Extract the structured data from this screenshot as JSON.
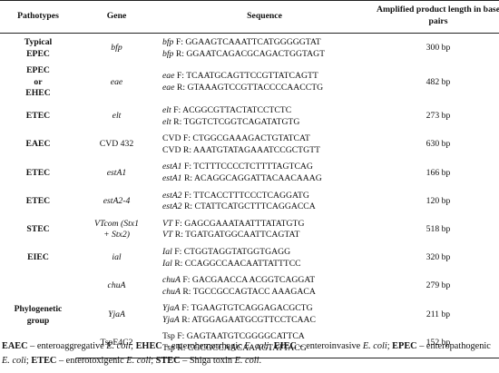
{
  "headers": {
    "pathotypes": "Pathotypes",
    "gene": "Gene",
    "sequence": "Sequence",
    "length": "Amplified product length in base pairs"
  },
  "rows": [
    {
      "pathotype": [
        "Typical",
        "EPEC"
      ],
      "gene": [
        "bfp"
      ],
      "gene_italic": true,
      "seq": [
        {
          "tag": "bfp",
          "text": " F: GGAAGTCAAATTCATGGGGGTAT"
        },
        {
          "tag": "bfp",
          "text": " R: GGAATCAGACGCAGACTGGTAGT"
        }
      ],
      "length": "300 bp"
    },
    {
      "pathotype": [
        "EPEC",
        "or",
        "EHEC"
      ],
      "gene": [
        "eae"
      ],
      "gene_italic": true,
      "seq": [
        {
          "tag": "eae",
          "text": " F: TCAATGCAGTTCCGTTATCAGTT"
        },
        {
          "tag": "eae",
          "text": " R: GTAAAGTCCGTTACCCCAACCTG"
        }
      ],
      "length": "482 bp"
    },
    {
      "pathotype": [
        "ETEC"
      ],
      "gene": [
        "elt"
      ],
      "gene_italic": true,
      "seq": [
        {
          "tag": "elt",
          "text": " F: ACGGCGTTACTATCCTCTC"
        },
        {
          "tag": "elt",
          "text": " R: TGGTCTCGGTCAGATATGTG"
        }
      ],
      "length": "273 bp"
    },
    {
      "pathotype": [
        "EAEC"
      ],
      "gene": [
        "CVD 432"
      ],
      "gene_italic": false,
      "seq": [
        {
          "tag": "CVD",
          "text": " F: CTGGCGAAAGACTGTATCAT",
          "plain": true
        },
        {
          "tag": "CVD",
          "text": " R: AAATGTATAGAAATCCGCTGTT",
          "plain": true
        }
      ],
      "length": "630 bp"
    },
    {
      "pathotype": [
        "ETEC"
      ],
      "gene": [
        "estA1"
      ],
      "gene_italic": true,
      "seq": [
        {
          "tag": "estA1",
          "text": " F: TCTTTCCCCTCTTTTAGTCAG"
        },
        {
          "tag": "estA1",
          "text": " R: ACAGGCAGGATTACAACAAAG"
        }
      ],
      "length": "166 bp"
    },
    {
      "pathotype": [
        "ETEC"
      ],
      "gene": [
        "estA2-4"
      ],
      "gene_italic": true,
      "seq": [
        {
          "tag": "estA2",
          "text": " F: TTCACCTTTCCCTCAGGATG"
        },
        {
          "tag": "estA2",
          "text": " R: CTATTCATGCTTTCAGGACCA"
        }
      ],
      "length": "120 bp"
    },
    {
      "pathotype": [
        "STEC"
      ],
      "gene": [
        "VTcom (Stx1",
        "+ Stx2)"
      ],
      "gene_italic": true,
      "seq": [
        {
          "tag": "VT",
          "text": " F: GAGCGAAATAATTTATATGTG"
        },
        {
          "tag": "VT",
          "text": " R: TGATGATGGCAATTCAGTAT"
        }
      ],
      "length": "518 bp"
    },
    {
      "pathotype": [
        "EIEC"
      ],
      "gene": [
        "ial"
      ],
      "gene_italic": true,
      "seq": [
        {
          "tag": "Ial",
          "text": " F: CTGGTAGGTATGGTGAGG"
        },
        {
          "tag": "Ial",
          "text": " R: CCAGGCCAACAATTATTTCC"
        }
      ],
      "length": "320 bp"
    },
    {
      "pathotype": [],
      "gene": [
        "chuA"
      ],
      "gene_italic": true,
      "seq": [
        {
          "tag": "chuA",
          "text": " F: GACGAACCA ACGGTCAGGAT"
        },
        {
          "tag": "chuA",
          "text": " R: TGCCGCCAGTACC AAAGACA"
        }
      ],
      "length": "279 bp"
    },
    {
      "pathotype": [
        "Phylogenetic",
        "group"
      ],
      "gene": [
        "YjaA"
      ],
      "gene_italic": true,
      "seq": [
        {
          "tag": "YjaA",
          "text": " F: TGAAGTGTCAGGAGACGCTG"
        },
        {
          "tag": "YjaA",
          "text": " R: ATGGAGAATGCGTTCCTCAAC"
        }
      ],
      "length": "211 bp"
    },
    {
      "pathotype": [],
      "gene": [
        "TspE4C2"
      ],
      "gene_italic": false,
      "seq": [
        {
          "tag": "Tsp",
          "text": " F: GAGTAATGTCGGGGCATTCA",
          "plain": true
        },
        {
          "tag": "Tsp",
          "text": " R: CGCGCCAACAAAGTATTACG",
          "plain": true
        }
      ],
      "length": "152 bp"
    }
  ],
  "footnote": [
    {
      "b": "EAEC",
      "t": " – enteroaggregative ",
      "i": "E. coli",
      "s": "; "
    },
    {
      "b": "EHEC",
      "t": " – enterohemorrhagic ",
      "i": "E. coli",
      "s": "; "
    },
    {
      "b": "EIEC",
      "t": " – enteroinvasive ",
      "i": "E. coli",
      "s": "; "
    },
    {
      "b": "EPEC",
      "t": " – enteropathogenic ",
      "i": "E. coli",
      "s": "; "
    },
    {
      "b": "ETEC",
      "t": " – enterotoxigenic ",
      "i": "E. coli",
      "s": "; "
    },
    {
      "b": "STEC",
      "t": " – Shiga toxin ",
      "i": "E. coli",
      "s": "."
    }
  ]
}
